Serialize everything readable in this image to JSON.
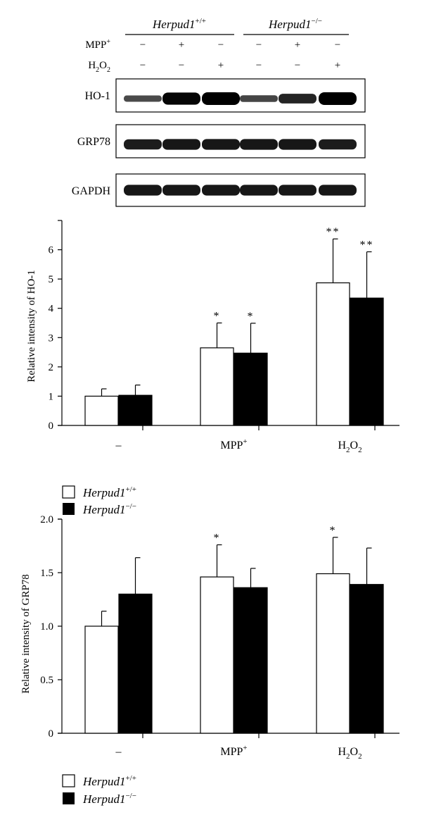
{
  "blot": {
    "genotypes": [
      {
        "base": "Herpud1",
        "sup": "+/+"
      },
      {
        "base": "Herpud1",
        "sup": "−/−"
      }
    ],
    "treatments": [
      {
        "base": "MPP",
        "sup": "+",
        "signs": [
          "−",
          "+",
          "−",
          "−",
          "+",
          "−"
        ]
      },
      {
        "label": "H2O2",
        "base": "H",
        "sub1": "2",
        "mid": "O",
        "sub2": "2",
        "signs": [
          "−",
          "−",
          "+",
          "−",
          "−",
          "+"
        ]
      }
    ],
    "bands": [
      {
        "label": "HO-1",
        "intensities": [
          0.35,
          0.95,
          1.0,
          0.4,
          0.7,
          1.0
        ]
      },
      {
        "label": "GRP78",
        "intensities": [
          0.75,
          0.8,
          0.8,
          0.8,
          0.8,
          0.75
        ]
      },
      {
        "label": "GAPDH",
        "intensities": [
          0.8,
          0.8,
          0.8,
          0.8,
          0.8,
          0.8
        ]
      }
    ]
  },
  "chart_data": [
    {
      "type": "bar",
      "categories": [
        "–",
        "MPP+",
        "H2O2"
      ],
      "ylabel": "Relative intensity of HO-1",
      "ylim": [
        0,
        7
      ],
      "yticks": [
        "0",
        "1",
        "2",
        "3",
        "4",
        "5",
        "6"
      ],
      "tick_values": [
        0,
        1,
        2,
        3,
        4,
        5,
        6
      ],
      "series": [
        {
          "name": "Herpud1+/+",
          "color": "#ffffff",
          "values": [
            1.0,
            2.65,
            4.87
          ],
          "errors": [
            0.25,
            0.85,
            1.5
          ],
          "marks": [
            "",
            "*",
            "**"
          ]
        },
        {
          "name": "Herpud1−/−",
          "color": "#000000",
          "values": [
            1.03,
            2.47,
            4.35
          ],
          "errors": [
            0.35,
            1.02,
            1.58
          ],
          "marks": [
            "",
            "*",
            "**"
          ]
        }
      ]
    },
    {
      "type": "bar",
      "categories": [
        "–",
        "MPP+",
        "H2O2"
      ],
      "ylabel": "Relative intensity of GRP78",
      "ylim": [
        0,
        2.0
      ],
      "yticks": [
        "0",
        "0.5",
        "1.0",
        "1.5",
        "2.0"
      ],
      "tick_values": [
        0,
        0.5,
        1.0,
        1.5,
        2.0
      ],
      "series": [
        {
          "name": "Herpud1+/+",
          "color": "#ffffff",
          "values": [
            1.0,
            1.46,
            1.49
          ],
          "errors": [
            0.14,
            0.3,
            0.34
          ],
          "marks": [
            "",
            "*",
            "*"
          ]
        },
        {
          "name": "Herpud1−/−",
          "color": "#000000",
          "values": [
            1.3,
            1.36,
            1.39
          ],
          "errors": [
            0.34,
            0.18,
            0.34
          ],
          "marks": [
            "",
            "",
            ""
          ]
        }
      ]
    }
  ],
  "legend": {
    "base": "Herpud1",
    "sups": [
      "+/+",
      "−/−"
    ]
  },
  "category_labels": [
    {
      "base": "–"
    },
    {
      "base": "MPP",
      "sup": "+"
    },
    {
      "base": "H",
      "sub1": "2",
      "mid": "O",
      "sub2": "2"
    }
  ]
}
